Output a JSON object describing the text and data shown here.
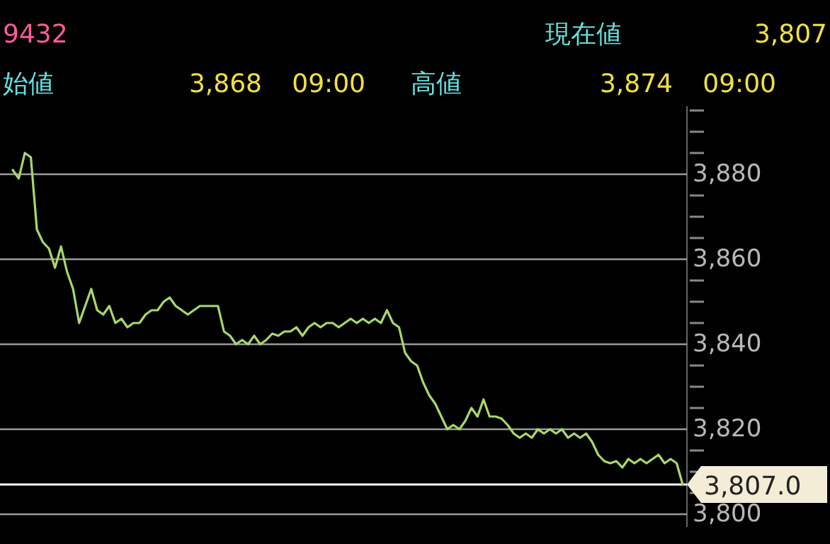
{
  "chart_data": {
    "type": "line",
    "annotations": [
      "9432",
      "現在値",
      "3,807",
      "始値",
      "3,868",
      "09:00",
      "高値",
      "3,874",
      "09:00"
    ],
    "categories": [
      null,
      null,
      null,
      null,
      null,
      null,
      null,
      null,
      null,
      null,
      null,
      null,
      null,
      null,
      null,
      null,
      null,
      null,
      null,
      null,
      null,
      null,
      null,
      null,
      null,
      null,
      null,
      null,
      null,
      null,
      null,
      null,
      null,
      null,
      null,
      null,
      null,
      null,
      null,
      null,
      null,
      null,
      null,
      null,
      null,
      null,
      null,
      null,
      null,
      null,
      null,
      null,
      null,
      null,
      null,
      null,
      null,
      null,
      null,
      null,
      null,
      null,
      null,
      null,
      null,
      null,
      null,
      null,
      null,
      null,
      null,
      null,
      null,
      null,
      null,
      null,
      null,
      null,
      null,
      null,
      null,
      null,
      null,
      null,
      null,
      null,
      null,
      null,
      null,
      null,
      null,
      null,
      null,
      null,
      null,
      null,
      null,
      null,
      null,
      null,
      null,
      null,
      null,
      null,
      null,
      null,
      null,
      null,
      null,
      null,
      null,
      null
    ],
    "series": [
      {
        "color": "#a8d86a",
        "values": [
          3881,
          3879,
          3885,
          3884,
          3867,
          3864,
          3862.5,
          3858,
          3863,
          3857,
          3853,
          3845,
          3849,
          3853,
          3848,
          3847,
          3849,
          3845,
          3846,
          3844,
          3845,
          3845,
          3847,
          3848,
          3848,
          3850,
          3851,
          3849,
          3848,
          3847,
          3848,
          3849,
          3849,
          3849,
          3849,
          3843,
          3842,
          3840,
          3841,
          3840,
          3842,
          3840,
          3841,
          3842.5,
          3842,
          3843,
          3843,
          3844,
          3842,
          3844,
          3845,
          3844,
          3845,
          3845,
          3844,
          3845,
          3846,
          3845,
          3846,
          3845,
          3846,
          3845,
          3848,
          3845,
          3844,
          3838,
          3836,
          3835,
          3831,
          3828,
          3826,
          3823,
          3820,
          3821,
          3820,
          3822,
          3825,
          3823,
          3827,
          3823,
          3823,
          3822.5,
          3821,
          3819,
          3818,
          3819,
          3818,
          3820,
          3819,
          3820,
          3819,
          3820,
          3818,
          3819,
          3818,
          3819,
          3817,
          3814,
          3812.5,
          3812,
          3812.5,
          3811,
          3813,
          3812,
          3813,
          3812,
          3813,
          3814,
          3812,
          3813,
          3812,
          3807
        ]
      }
    ],
    "ylim": [
      3797,
      3896
    ],
    "yticks": [
      {
        "value": 3800,
        "label": "3,800"
      },
      {
        "value": 3805,
        "label": null
      },
      {
        "value": 3810,
        "label": null
      },
      {
        "value": 3815,
        "label": null
      },
      {
        "value": 3820,
        "label": "3,820"
      },
      {
        "value": 3825,
        "label": null
      },
      {
        "value": 3830,
        "label": null
      },
      {
        "value": 3835,
        "label": null
      },
      {
        "value": 3840,
        "label": "3,840"
      },
      {
        "value": 3845,
        "label": null
      },
      {
        "value": 3850,
        "label": null
      },
      {
        "value": 3855,
        "label": null
      },
      {
        "value": 3860,
        "label": "3,860"
      },
      {
        "value": 3865,
        "label": null
      },
      {
        "value": 3870,
        "label": null
      },
      {
        "value": 3875,
        "label": null
      },
      {
        "value": 3880,
        "label": "3,880"
      },
      {
        "value": 3885,
        "label": null
      },
      {
        "value": 3890,
        "label": null
      },
      {
        "value": 3895,
        "label": null
      }
    ],
    "grid": "y",
    "ref_lines": [
      {
        "axis": "y",
        "value": 3807,
        "label": "3,807.0",
        "color": "#ffffff"
      }
    ]
  }
}
